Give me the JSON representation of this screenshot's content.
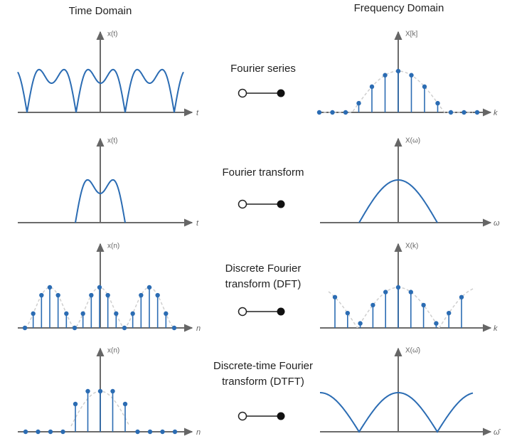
{
  "headers": {
    "time": "Time Domain",
    "frequency": "Frequency Domain"
  },
  "rows": [
    {
      "label": [
        "Fourier series"
      ],
      "time_axis": {
        "y": "x(t)",
        "x": "t"
      },
      "frequency_axis": {
        "y": "X[k]",
        "x": "k"
      }
    },
    {
      "label": [
        "Fourier transform"
      ],
      "time_axis": {
        "y": "x(t)",
        "x": "t"
      },
      "frequency_axis": {
        "y": "X(ω)",
        "x": "ω"
      }
    },
    {
      "label": [
        "Discrete Fourier",
        "transform (DFT)"
      ],
      "time_axis": {
        "y": "x(n)",
        "x": "n"
      },
      "frequency_axis": {
        "y": "X(k)",
        "x": "k"
      }
    },
    {
      "label": [
        "Discrete-time Fourier",
        "transform (DTFT)"
      ],
      "time_axis": {
        "y": "x(n)",
        "x": "n"
      },
      "frequency_axis": {
        "y": "X(ω̂)",
        "x": "ω̂"
      }
    }
  ]
}
